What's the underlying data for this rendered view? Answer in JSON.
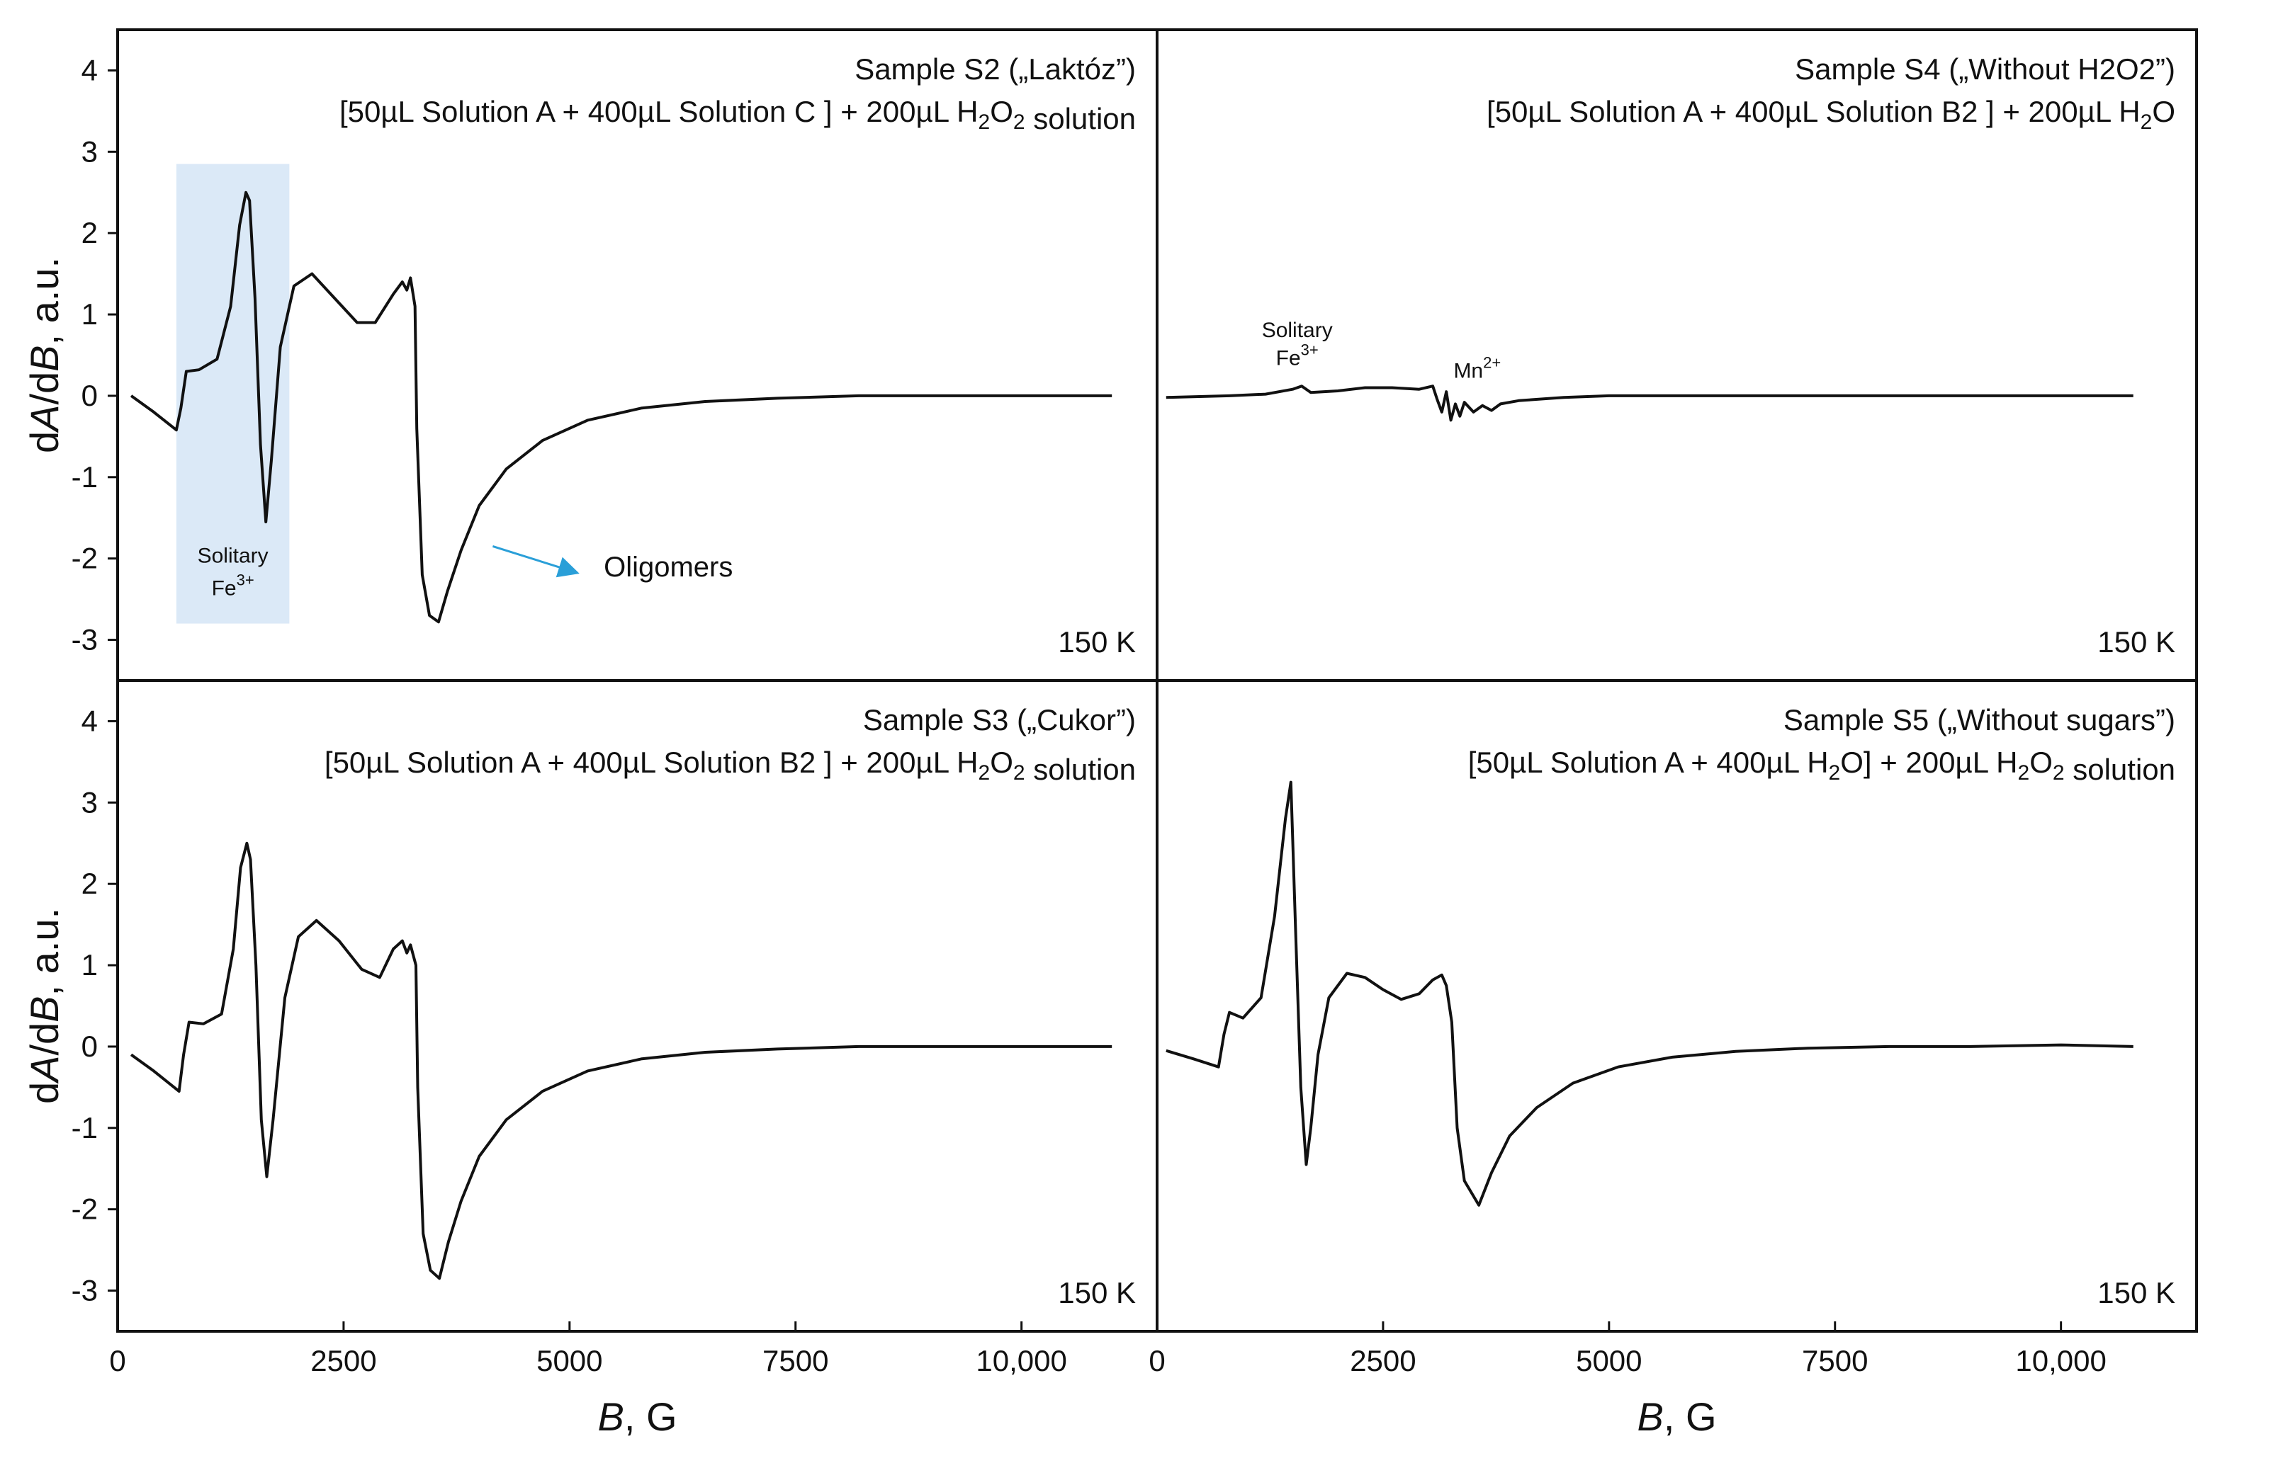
{
  "figure": {
    "y_axis_label_prefix": "dA/dB, a.u.",
    "x_axis_label": "B, G",
    "x_ticks": [
      "0",
      "2500",
      "5000",
      "7500",
      "10,000"
    ],
    "y_ticks": [
      "4",
      "3",
      "2",
      "1",
      "0",
      "-1",
      "-2",
      "-3"
    ]
  },
  "chart_data": [
    {
      "type": "line",
      "panel": "top-left",
      "title": "Sample S2 („Laktóz”)",
      "formula": "[50µL Solution A  + 400µL Solution C ] + 200µL H2O2 solution",
      "temperature": "150 K",
      "xlabel": "B, G",
      "ylabel": "dA/dB, a.u.",
      "xlim": [
        0,
        11500
      ],
      "ylim": [
        -3.5,
        4.5
      ],
      "highlight": {
        "x_range": [
          650,
          1900
        ],
        "label_line1": "Solitary",
        "label_line2": "Fe3+"
      },
      "annotation": {
        "text": "Oligomers",
        "arrow_from": [
          4150,
          -1.85
        ],
        "arrow_to": [
          5300,
          -2.1
        ]
      },
      "series": [
        {
          "name": "S2",
          "x": [
            150,
            400,
            650,
            700,
            760,
            900,
            1100,
            1250,
            1350,
            1420,
            1460,
            1520,
            1580,
            1640,
            1700,
            1800,
            1950,
            2150,
            2400,
            2650,
            2850,
            3050,
            3150,
            3200,
            3240,
            3290,
            3310,
            3370,
            3450,
            3550,
            3650,
            3800,
            4000,
            4300,
            4700,
            5200,
            5800,
            6500,
            7300,
            8200,
            9200,
            10200,
            11000
          ],
          "y": [
            0,
            -0.2,
            -0.42,
            -0.15,
            0.3,
            0.32,
            0.45,
            1.1,
            2.1,
            2.5,
            2.4,
            1.2,
            -0.6,
            -1.55,
            -0.8,
            0.6,
            1.35,
            1.5,
            1.2,
            0.9,
            0.9,
            1.25,
            1.4,
            1.3,
            1.45,
            1.1,
            -0.4,
            -2.2,
            -2.7,
            -2.78,
            -2.4,
            -1.9,
            -1.35,
            -0.9,
            -0.55,
            -0.3,
            -0.15,
            -0.07,
            -0.03,
            0,
            0,
            0,
            0
          ]
        }
      ]
    },
    {
      "type": "line",
      "panel": "top-right",
      "title": "Sample S4 („Without H2O2”)",
      "formula": "[50µL Solution A  + 400µL Solution B2 ] + 200µL H2O",
      "temperature": "150 K",
      "xlabel": "B, G",
      "ylabel": "dA/dB, a.u.",
      "xlim": [
        0,
        11500
      ],
      "ylim": [
        -3.5,
        4.5
      ],
      "annotations": [
        {
          "line1": "Solitary",
          "line2": "Fe3+",
          "x": 1550
        },
        {
          "line1": "Mn2+",
          "line2": "",
          "x": 3150
        }
      ],
      "series": [
        {
          "name": "S4",
          "x": [
            100,
            800,
            1200,
            1500,
            1600,
            1700,
            2000,
            2300,
            2600,
            2900,
            3050,
            3100,
            3150,
            3200,
            3250,
            3300,
            3350,
            3400,
            3500,
            3600,
            3700,
            3800,
            4000,
            4500,
            5000,
            6000,
            7000,
            8000,
            9000,
            10000,
            10800
          ],
          "y": [
            -0.02,
            0,
            0.02,
            0.08,
            0.12,
            0.04,
            0.06,
            0.1,
            0.1,
            0.08,
            0.12,
            -0.05,
            -0.2,
            0.05,
            -0.3,
            -0.1,
            -0.25,
            -0.08,
            -0.2,
            -0.12,
            -0.18,
            -0.1,
            -0.06,
            -0.02,
            0,
            0,
            0,
            0,
            0,
            0,
            0
          ]
        }
      ]
    },
    {
      "type": "line",
      "panel": "bottom-left",
      "title": "Sample S3 („Cukor”)",
      "formula": "[50µL Solution A  + 400µL Solution B2 ] + 200µL H2O2 solution",
      "temperature": "150 K",
      "xlabel": "B, G",
      "ylabel": "dA/dB, a.u.",
      "xlim": [
        0,
        11500
      ],
      "ylim": [
        -3.5,
        4.5
      ],
      "series": [
        {
          "name": "S3",
          "x": [
            150,
            400,
            680,
            730,
            790,
            950,
            1150,
            1280,
            1360,
            1430,
            1470,
            1530,
            1590,
            1650,
            1720,
            1850,
            2000,
            2200,
            2450,
            2700,
            2900,
            3050,
            3150,
            3200,
            3240,
            3300,
            3320,
            3380,
            3460,
            3560,
            3660,
            3800,
            4000,
            4300,
            4700,
            5200,
            5800,
            6500,
            7300,
            8200,
            9200,
            10200,
            11000
          ],
          "y": [
            -0.1,
            -0.3,
            -0.55,
            -0.1,
            0.3,
            0.28,
            0.4,
            1.2,
            2.2,
            2.5,
            2.3,
            1.0,
            -0.9,
            -1.6,
            -0.9,
            0.6,
            1.35,
            1.55,
            1.3,
            0.95,
            0.85,
            1.2,
            1.3,
            1.15,
            1.25,
            1.0,
            -0.5,
            -2.3,
            -2.75,
            -2.85,
            -2.4,
            -1.9,
            -1.35,
            -0.9,
            -0.55,
            -0.3,
            -0.15,
            -0.07,
            -0.03,
            0,
            0,
            0,
            0
          ]
        }
      ]
    },
    {
      "type": "line",
      "panel": "bottom-right",
      "title": "Sample S5 („Without sugars”)",
      "formula": "[50µL Solution A  + 400µL H2O] + 200µL H2O2 solution",
      "temperature": "150 K",
      "xlabel": "B, G",
      "ylabel": "dA/dB, a.u.",
      "xlim": [
        0,
        11500
      ],
      "ylim": [
        -3.5,
        4.5
      ],
      "series": [
        {
          "name": "S5",
          "x": [
            100,
            400,
            680,
            740,
            800,
            950,
            1150,
            1300,
            1420,
            1480,
            1530,
            1590,
            1650,
            1700,
            1780,
            1900,
            2100,
            2300,
            2500,
            2700,
            2900,
            3050,
            3150,
            3200,
            3260,
            3320,
            3400,
            3560,
            3700,
            3900,
            4200,
            4600,
            5100,
            5700,
            6400,
            7200,
            8100,
            9000,
            10000,
            10800
          ],
          "y": [
            -0.05,
            -0.15,
            -0.25,
            0.15,
            0.42,
            0.35,
            0.6,
            1.6,
            2.8,
            3.25,
            1.5,
            -0.5,
            -1.45,
            -1.0,
            -0.1,
            0.6,
            0.9,
            0.85,
            0.7,
            0.58,
            0.65,
            0.82,
            0.88,
            0.75,
            0.3,
            -1.0,
            -1.65,
            -1.95,
            -1.55,
            -1.1,
            -0.75,
            -0.45,
            -0.25,
            -0.13,
            -0.06,
            -0.02,
            0,
            0,
            0.02,
            0
          ]
        }
      ]
    }
  ]
}
